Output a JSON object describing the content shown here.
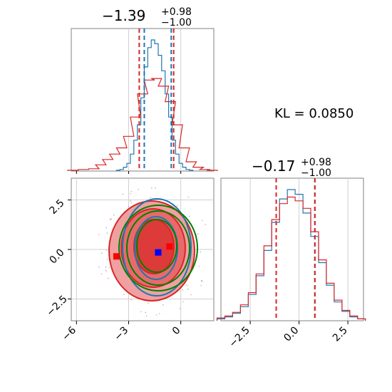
{
  "chart_data": [
    {
      "type": "histogram",
      "panel": "top-left",
      "title_value": "−1.39",
      "title_plus": "+0.98",
      "title_minus": "−1.00",
      "xlim": [
        -6.3,
        1.9
      ],
      "series": [
        {
          "name": "",
          "color": "#1f77b4",
          "x": [
            -3.6,
            -3.4,
            -3.2,
            -3.0,
            -2.8,
            -2.6,
            -2.4,
            -2.2,
            -2.0,
            -1.8,
            -1.6,
            -1.4,
            -1.2,
            -1.0,
            -0.8,
            -0.6,
            -0.4,
            -0.2,
            0.0,
            0.2,
            0.4,
            0.6
          ],
          "values": [
            1,
            2,
            5,
            10,
            22,
            40,
            60,
            95,
            135,
            160,
            170,
            165,
            150,
            130,
            100,
            70,
            40,
            22,
            10,
            5,
            2,
            1
          ]
        },
        {
          "name": "",
          "color": "#d62728",
          "x": [
            -6.2,
            -5.6,
            -5.0,
            -4.6,
            -4.2,
            -3.8,
            -3.4,
            -3.0,
            -2.6,
            -2.2,
            -1.8,
            -1.4,
            -1.0,
            -0.6,
            -0.2,
            0.2,
            0.6,
            1.0,
            1.4,
            1.8
          ],
          "values": [
            1,
            2,
            3,
            8,
            15,
            22,
            30,
            45,
            70,
            100,
            118,
            120,
            110,
            90,
            60,
            30,
            12,
            5,
            2,
            1
          ]
        }
      ],
      "vlines": [
        {
          "x": -2.1,
          "color": "#1f77b4"
        },
        {
          "x": -0.55,
          "color": "#1f77b4"
        },
        {
          "x": -2.39,
          "color": "#d62728"
        },
        {
          "x": -0.41,
          "color": "#d62728"
        }
      ]
    },
    {
      "type": "contour",
      "panel": "bottom-left",
      "xlim": [
        -6.3,
        1.9
      ],
      "ylim": [
        -3.6,
        3.6
      ],
      "xticks": [
        -6,
        -3,
        0
      ],
      "xtick_labels": [
        "−6",
        "−3",
        "0"
      ],
      "yticks": [
        -2.5,
        0.0,
        2.5
      ],
      "ytick_labels": [
        "−2.5",
        "0.0",
        "2.5"
      ],
      "grid": true,
      "markers": [
        {
          "x": -1.3,
          "y": -0.15,
          "color": "#0000ff"
        },
        {
          "x": -3.7,
          "y": -0.35,
          "color": "#ff0000"
        },
        {
          "x": -0.65,
          "y": 0.15,
          "color": "#ff0000"
        }
      ]
    },
    {
      "type": "histogram",
      "panel": "bottom-right",
      "title_value": "−0.17",
      "title_plus": "+0.98",
      "title_minus": "−1.00",
      "xlim": [
        -4.0,
        3.3
      ],
      "xticks": [
        -2.5,
        0.0,
        2.5
      ],
      "xtick_labels": [
        "−2.5",
        "0.0",
        "2.5"
      ],
      "series": [
        {
          "name": "",
          "color": "#1f77b4",
          "x": [
            -4.0,
            -3.6,
            -3.2,
            -2.8,
            -2.4,
            -2.0,
            -1.6,
            -1.2,
            -0.8,
            -0.4,
            0.0,
            0.4,
            0.8,
            1.2,
            1.6,
            2.0,
            2.4,
            2.8,
            3.2
          ],
          "values": [
            2,
            4,
            8,
            15,
            28,
            48,
            75,
            105,
            130,
            140,
            135,
            115,
            90,
            62,
            38,
            20,
            10,
            4,
            2
          ]
        },
        {
          "name": "",
          "color": "#d62728",
          "x": [
            -4.0,
            -3.6,
            -3.2,
            -2.8,
            -2.4,
            -2.0,
            -1.6,
            -1.2,
            -0.8,
            -0.4,
            0.0,
            0.4,
            0.8,
            1.2,
            1.6,
            2.0,
            2.4,
            2.8,
            3.2
          ],
          "values": [
            3,
            5,
            9,
            17,
            30,
            50,
            80,
            108,
            125,
            132,
            128,
            120,
            95,
            65,
            40,
            22,
            11,
            5,
            2
          ]
        }
      ],
      "vlines": [
        {
          "x": -1.17,
          "color": "#d62728"
        },
        {
          "x": 0.81,
          "color": "#1f77b4"
        },
        {
          "x": 0.81,
          "color": "#d62728"
        }
      ]
    }
  ],
  "kl_label": "KL = 0.0850"
}
